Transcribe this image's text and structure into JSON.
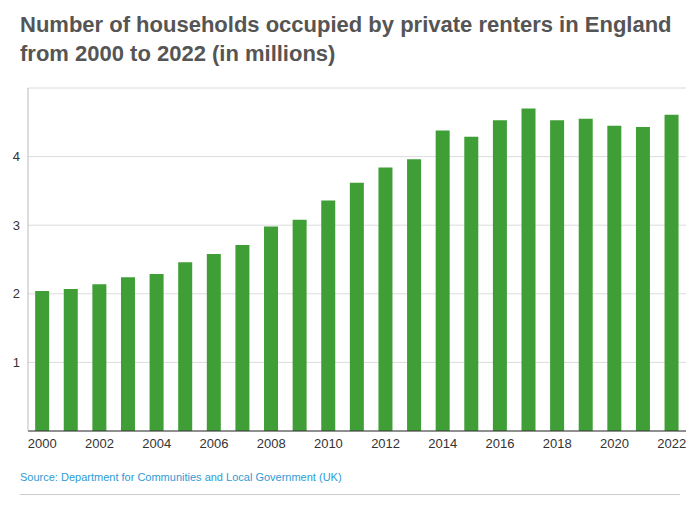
{
  "chart_data": {
    "type": "bar",
    "title": "Number of households occupied by private renters in England from 2000 to 2022 (in millions)",
    "source": "Source: Department for Communities and Local Government (UK)",
    "categories": [
      "2000",
      null,
      "2002",
      null,
      "2004",
      null,
      "2006",
      null,
      "2008",
      null,
      "2010",
      null,
      "2012",
      null,
      "2014",
      null,
      "2016",
      null,
      "2018",
      null,
      "2020",
      null,
      "2022"
    ],
    "values": [
      2.04,
      2.07,
      2.14,
      2.24,
      2.29,
      2.46,
      2.58,
      2.71,
      2.98,
      3.08,
      3.36,
      3.62,
      3.84,
      3.96,
      4.38,
      4.29,
      4.53,
      4.7,
      4.53,
      4.55,
      4.45,
      4.43,
      4.61
    ],
    "color": "#3f9e36",
    "ylim": [
      0,
      5
    ],
    "yticks": [
      1,
      2,
      3,
      4
    ],
    "grid": true
  }
}
